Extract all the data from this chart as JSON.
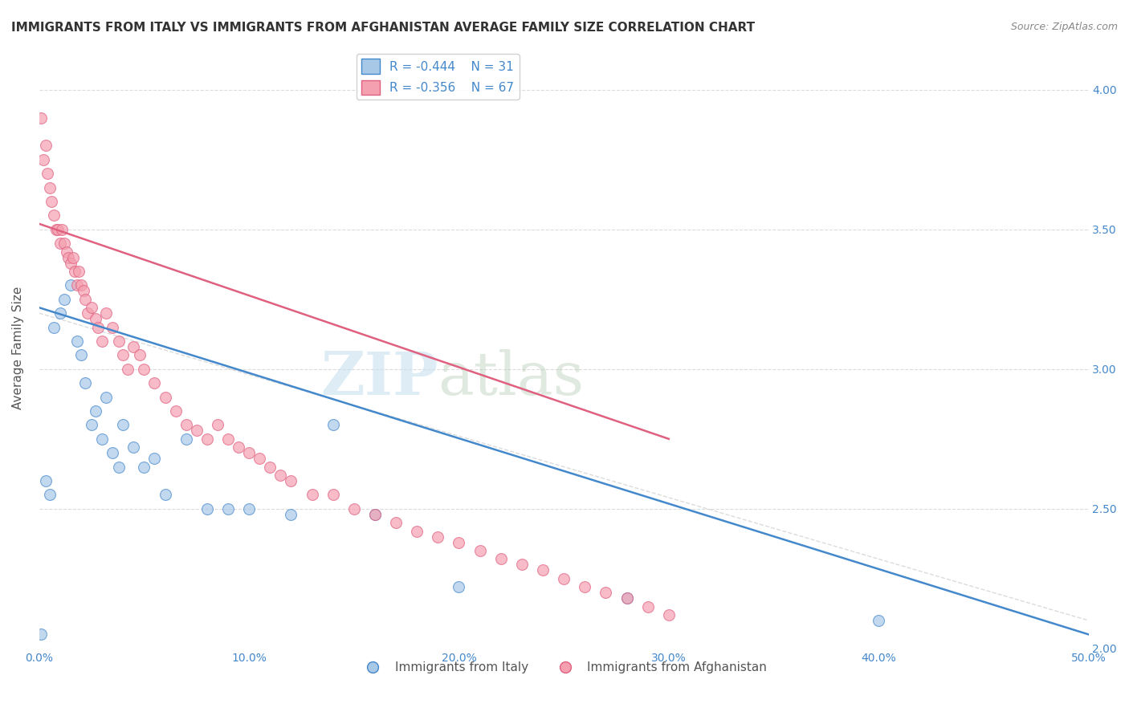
{
  "title": "IMMIGRANTS FROM ITALY VS IMMIGRANTS FROM AFGHANISTAN AVERAGE FAMILY SIZE CORRELATION CHART",
  "source": "Source: ZipAtlas.com",
  "xlabel": "",
  "ylabel": "Average Family Size",
  "xlim": [
    0.0,
    0.5
  ],
  "ylim": [
    2.0,
    4.15
  ],
  "yticks": [
    2.0,
    2.5,
    3.0,
    3.5,
    4.0
  ],
  "xticks": [
    0.0,
    0.1,
    0.2,
    0.3,
    0.4,
    0.5
  ],
  "xtick_labels": [
    "0.0%",
    "10.0%",
    "20.0%",
    "30.0%",
    "40.0%",
    "50.0%"
  ],
  "ytick_labels_right": [
    "2.00",
    "2.50",
    "3.00",
    "3.50",
    "4.00"
  ],
  "legend_italy_R": "R = -0.444",
  "legend_italy_N": "N = 31",
  "legend_afghan_R": "R = -0.356",
  "legend_afghan_N": "N = 67",
  "label_italy": "Immigrants from Italy",
  "label_afghan": "Immigrants from Afghanistan",
  "italy_color": "#a8c8e8",
  "italy_line_color": "#4488cc",
  "afghan_color": "#f4a0b0",
  "afghan_line_color": "#e06080",
  "watermark_zip": "ZIP",
  "watermark_atlas": "atlas",
  "italy_scatter_x": [
    0.001,
    0.003,
    0.005,
    0.007,
    0.01,
    0.012,
    0.015,
    0.018,
    0.02,
    0.022,
    0.025,
    0.027,
    0.03,
    0.032,
    0.035,
    0.038,
    0.04,
    0.045,
    0.05,
    0.055,
    0.06,
    0.07,
    0.08,
    0.09,
    0.1,
    0.12,
    0.14,
    0.16,
    0.2,
    0.28,
    0.4
  ],
  "italy_scatter_y": [
    2.05,
    2.6,
    2.55,
    3.15,
    3.2,
    3.25,
    3.3,
    3.1,
    3.05,
    2.95,
    2.8,
    2.85,
    2.75,
    2.9,
    2.7,
    2.65,
    2.8,
    2.72,
    2.65,
    2.68,
    2.55,
    2.75,
    2.5,
    2.5,
    2.5,
    2.48,
    2.8,
    2.48,
    2.22,
    2.18,
    2.1
  ],
  "afghan_scatter_x": [
    0.001,
    0.002,
    0.003,
    0.004,
    0.005,
    0.006,
    0.007,
    0.008,
    0.009,
    0.01,
    0.011,
    0.012,
    0.013,
    0.014,
    0.015,
    0.016,
    0.017,
    0.018,
    0.019,
    0.02,
    0.021,
    0.022,
    0.023,
    0.025,
    0.027,
    0.028,
    0.03,
    0.032,
    0.035,
    0.038,
    0.04,
    0.042,
    0.045,
    0.048,
    0.05,
    0.055,
    0.06,
    0.065,
    0.07,
    0.075,
    0.08,
    0.085,
    0.09,
    0.095,
    0.1,
    0.105,
    0.11,
    0.115,
    0.12,
    0.13,
    0.14,
    0.15,
    0.16,
    0.17,
    0.18,
    0.19,
    0.2,
    0.21,
    0.22,
    0.23,
    0.24,
    0.25,
    0.26,
    0.27,
    0.28,
    0.29,
    0.3
  ],
  "afghan_scatter_y": [
    3.9,
    3.75,
    3.8,
    3.7,
    3.65,
    3.6,
    3.55,
    3.5,
    3.5,
    3.45,
    3.5,
    3.45,
    3.42,
    3.4,
    3.38,
    3.4,
    3.35,
    3.3,
    3.35,
    3.3,
    3.28,
    3.25,
    3.2,
    3.22,
    3.18,
    3.15,
    3.1,
    3.2,
    3.15,
    3.1,
    3.05,
    3.0,
    3.08,
    3.05,
    3.0,
    2.95,
    2.9,
    2.85,
    2.8,
    2.78,
    2.75,
    2.8,
    2.75,
    2.72,
    2.7,
    2.68,
    2.65,
    2.62,
    2.6,
    2.55,
    2.55,
    2.5,
    2.48,
    2.45,
    2.42,
    2.4,
    2.38,
    2.35,
    2.32,
    2.3,
    2.28,
    2.25,
    2.22,
    2.2,
    2.18,
    2.15,
    2.12
  ],
  "italy_trend_x": [
    0.0,
    0.5
  ],
  "italy_trend_y": [
    3.22,
    2.05
  ],
  "afghan_trend_x": [
    0.0,
    0.3
  ],
  "afghan_trend_y": [
    3.52,
    2.75
  ],
  "background_color": "#ffffff",
  "grid_color": "#cccccc",
  "title_color": "#333333",
  "axis_color": "#4488cc",
  "marker_size": 10,
  "title_fontsize": 11,
  "axis_label_fontsize": 11,
  "tick_fontsize": 10,
  "legend_fontsize": 11
}
